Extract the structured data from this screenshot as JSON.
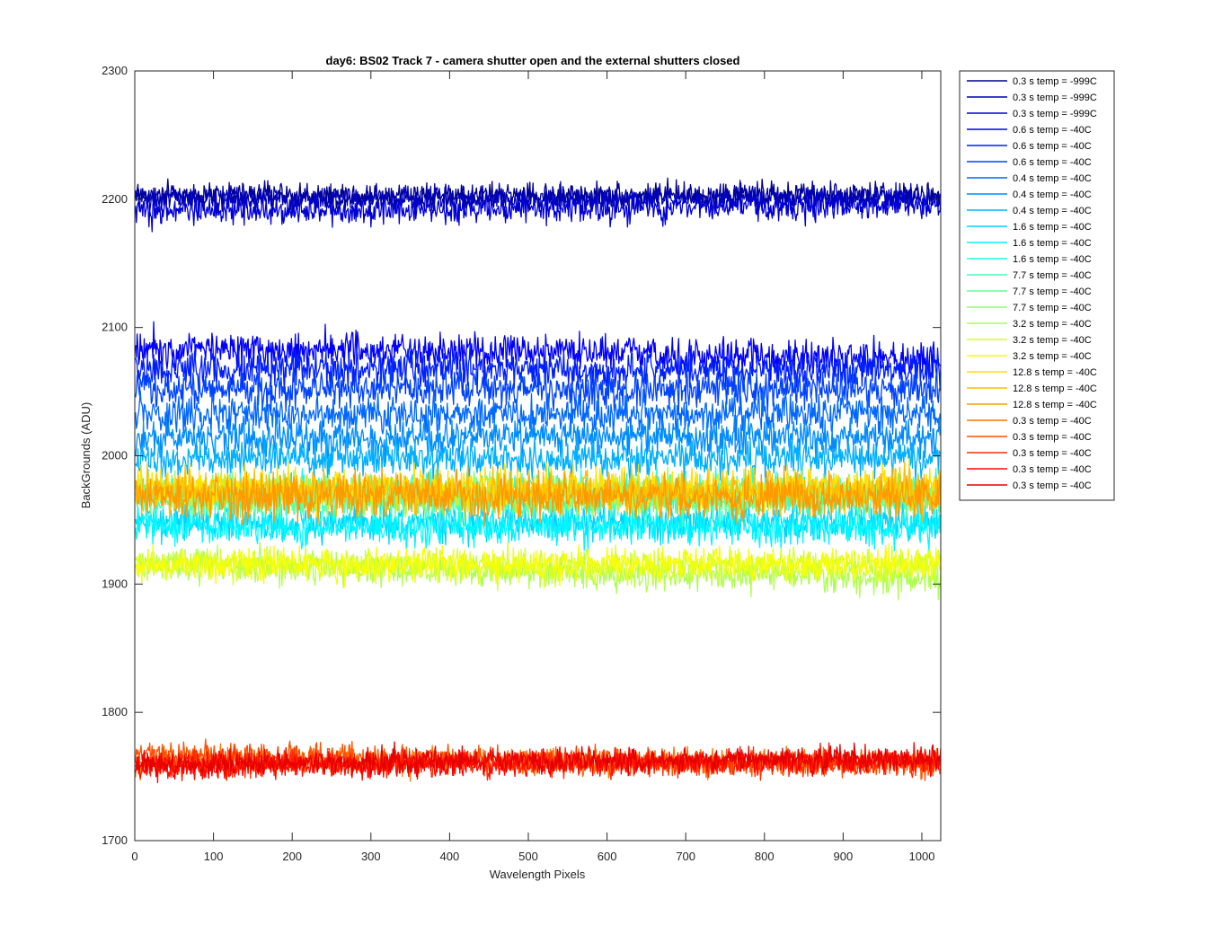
{
  "chart_data": {
    "type": "line",
    "title": "day6: BS02  Track 7 - camera shutter open and the external shutters closed",
    "xlabel": "Wavelength Pixels",
    "ylabel": "BackGrounds (ADU)",
    "xlim": [
      0,
      1024
    ],
    "ylim": [
      1700,
      2300
    ],
    "xticks": [
      0,
      100,
      200,
      300,
      400,
      500,
      600,
      700,
      800,
      900,
      1000
    ],
    "yticks": [
      1700,
      1800,
      1900,
      2000,
      2100,
      2200,
      2300
    ],
    "grid": false,
    "legend_position": "outside-top-right",
    "x_range_per_series": [
      1,
      1024
    ],
    "series": [
      {
        "name": "0.3 s temp = -999C",
        "color": "#00008F",
        "mean": 2203,
        "noise": 7,
        "slope": 0
      },
      {
        "name": "0.3 s temp = -999C",
        "color": "#0000B2",
        "mean": 2201,
        "noise": 7,
        "slope": 0
      },
      {
        "name": "0.3 s temp = -999C",
        "color": "#0000D6",
        "mean": 2193,
        "noise": 8,
        "slope": 0.004
      },
      {
        "name": "0.6 s temp = -40C",
        "color": "#0000FA",
        "mean": 2080,
        "noise": 10,
        "slope": -0.01
      },
      {
        "name": "0.6 s temp = -40C",
        "color": "#001FFF",
        "mean": 2067,
        "noise": 10,
        "slope": 0
      },
      {
        "name": "0.6 s temp = -40C",
        "color": "#0043FF",
        "mean": 2052,
        "noise": 10,
        "slope": 0
      },
      {
        "name": "0.4 s temp = -40C",
        "color": "#0067FF",
        "mean": 2032,
        "noise": 10,
        "slope": 0
      },
      {
        "name": "0.4 s temp = -40C",
        "color": "#008BFF",
        "mean": 2014,
        "noise": 10,
        "slope": 0
      },
      {
        "name": "0.4 s temp = -40C",
        "color": "#00AFFF",
        "mean": 1998,
        "noise": 10,
        "slope": 0
      },
      {
        "name": "1.6 s temp = -40C",
        "color": "#00D3FF",
        "mean": 1948,
        "noise": 10,
        "slope": 0
      },
      {
        "name": "1.6 s temp = -40C",
        "color": "#00F7FF",
        "mean": 1945,
        "noise": 10,
        "slope": 0
      },
      {
        "name": "1.6 s temp = -40C",
        "color": "#1FFFE0",
        "mean": 1972,
        "noise": 10,
        "slope": 0
      },
      {
        "name": "7.7 s temp = -40C",
        "color": "#43FFBC",
        "mean": 1965,
        "noise": 10,
        "slope": 0
      },
      {
        "name": "7.7 s temp = -40C",
        "color": "#67FF98",
        "mean": 1968,
        "noise": 10,
        "slope": 0
      },
      {
        "name": "7.7 s temp = -40C",
        "color": "#8BFF74",
        "mean": 1972,
        "noise": 10,
        "slope": 0
      },
      {
        "name": "3.2 s temp = -40C",
        "color": "#AFFF50",
        "mean": 1910,
        "noise": 9,
        "slope": -0.01
      },
      {
        "name": "3.2 s temp = -40C",
        "color": "#D3FF2C",
        "mean": 1915,
        "noise": 9,
        "slope": 0
      },
      {
        "name": "3.2 s temp = -40C",
        "color": "#F7FF08",
        "mean": 1915,
        "noise": 9,
        "slope": 0
      },
      {
        "name": "12.8 s temp = -40C",
        "color": "#FFE100",
        "mean": 1975,
        "noise": 12,
        "slope": 0
      },
      {
        "name": "12.8 s temp = -40C",
        "color": "#FFBD00",
        "mean": 1972,
        "noise": 12,
        "slope": 0
      },
      {
        "name": "12.8 s temp = -40C",
        "color": "#FF9900",
        "mean": 1968,
        "noise": 12,
        "slope": 0
      },
      {
        "name": "0.3 s temp = -40C",
        "color": "#FF7500",
        "mean": 1762,
        "noise": 7,
        "slope": 0
      },
      {
        "name": "0.3 s temp = -40C",
        "color": "#FF5100",
        "mean": 1763,
        "noise": 7,
        "slope": -0.01
      },
      {
        "name": "0.3 s temp = -40C",
        "color": "#FF2D00",
        "mean": 1760,
        "noise": 7,
        "slope": 0
      },
      {
        "name": "0.3 s temp = -40C",
        "color": "#FF0900",
        "mean": 1760,
        "noise": 7,
        "slope": 0.006
      },
      {
        "name": "0.3 s temp = -40C",
        "color": "#E50000",
        "mean": 1762,
        "noise": 7,
        "slope": 0.005
      }
    ]
  }
}
